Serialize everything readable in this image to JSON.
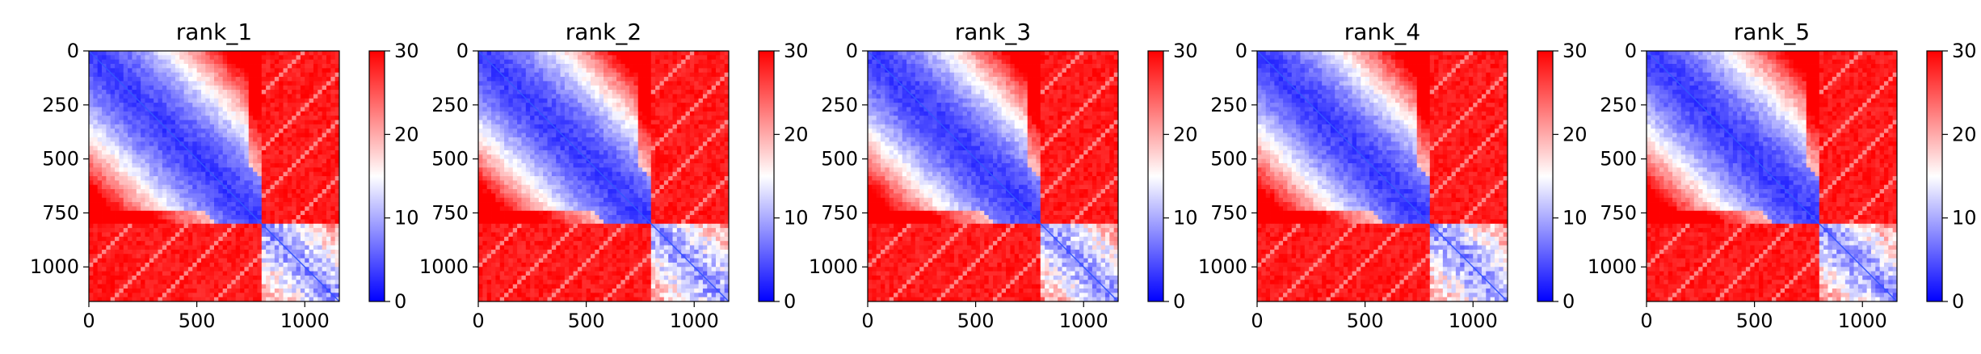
{
  "chart_data": [
    {
      "type": "heatmap",
      "title": "rank_1",
      "xticks": [
        0,
        500,
        1000
      ],
      "yticks": [
        0,
        250,
        500,
        750,
        1000
      ],
      "xlim": [
        0,
        1160
      ],
      "ylim": [
        1160,
        0
      ],
      "colorbar": {
        "ticks": [
          0,
          10,
          20,
          30
        ],
        "range": [
          0,
          30
        ],
        "colormap": "bwr"
      },
      "matrix_summary": {
        "n": 1160,
        "block_boundary": 810,
        "low_value": 3,
        "high_value": 30,
        "description": "low distance near diagonal in blocks 0-810 and 810-1160, high elsewhere"
      }
    },
    {
      "type": "heatmap",
      "title": "rank_2",
      "xticks": [
        0,
        500,
        1000
      ],
      "yticks": [
        0,
        250,
        500,
        750,
        1000
      ],
      "xlim": [
        0,
        1160
      ],
      "ylim": [
        1160,
        0
      ],
      "colorbar": {
        "ticks": [
          0,
          10,
          20,
          30
        ],
        "range": [
          0,
          30
        ],
        "colormap": "bwr"
      },
      "matrix_summary": {
        "n": 1160,
        "block_boundary": 810,
        "low_value": 3,
        "high_value": 30,
        "description": "low distance near diagonal in blocks 0-810 and 810-1160, high elsewhere"
      }
    },
    {
      "type": "heatmap",
      "title": "rank_3",
      "xticks": [
        0,
        500,
        1000
      ],
      "yticks": [
        0,
        250,
        500,
        750,
        1000
      ],
      "xlim": [
        0,
        1160
      ],
      "ylim": [
        1160,
        0
      ],
      "colorbar": {
        "ticks": [
          0,
          10,
          20,
          30
        ],
        "range": [
          0,
          30
        ],
        "colormap": "bwr"
      },
      "matrix_summary": {
        "n": 1160,
        "block_boundary": 810,
        "low_value": 3,
        "high_value": 30,
        "description": "low distance near diagonal in blocks 0-810 and 810-1160, high elsewhere"
      }
    },
    {
      "type": "heatmap",
      "title": "rank_4",
      "xticks": [
        0,
        500,
        1000
      ],
      "yticks": [
        0,
        250,
        500,
        750,
        1000
      ],
      "xlim": [
        0,
        1160
      ],
      "ylim": [
        1160,
        0
      ],
      "colorbar": {
        "ticks": [
          0,
          10,
          20,
          30
        ],
        "range": [
          0,
          30
        ],
        "colormap": "bwr"
      },
      "matrix_summary": {
        "n": 1160,
        "block_boundary": 810,
        "low_value": 3,
        "high_value": 30,
        "description": "low distance near diagonal in blocks 0-810 and 810-1160, high elsewhere"
      }
    },
    {
      "type": "heatmap",
      "title": "rank_5",
      "xticks": [
        0,
        500,
        1000
      ],
      "yticks": [
        0,
        250,
        500,
        750,
        1000
      ],
      "xlim": [
        0,
        1160
      ],
      "ylim": [
        1160,
        0
      ],
      "colorbar": {
        "ticks": [
          0,
          10,
          20,
          30
        ],
        "range": [
          0,
          30
        ],
        "colormap": "bwr"
      },
      "matrix_summary": {
        "n": 1160,
        "block_boundary": 810,
        "low_value": 3,
        "high_value": 30,
        "description": "low distance near diagonal in blocks 0-810 and 810-1160, high elsewhere"
      }
    }
  ]
}
